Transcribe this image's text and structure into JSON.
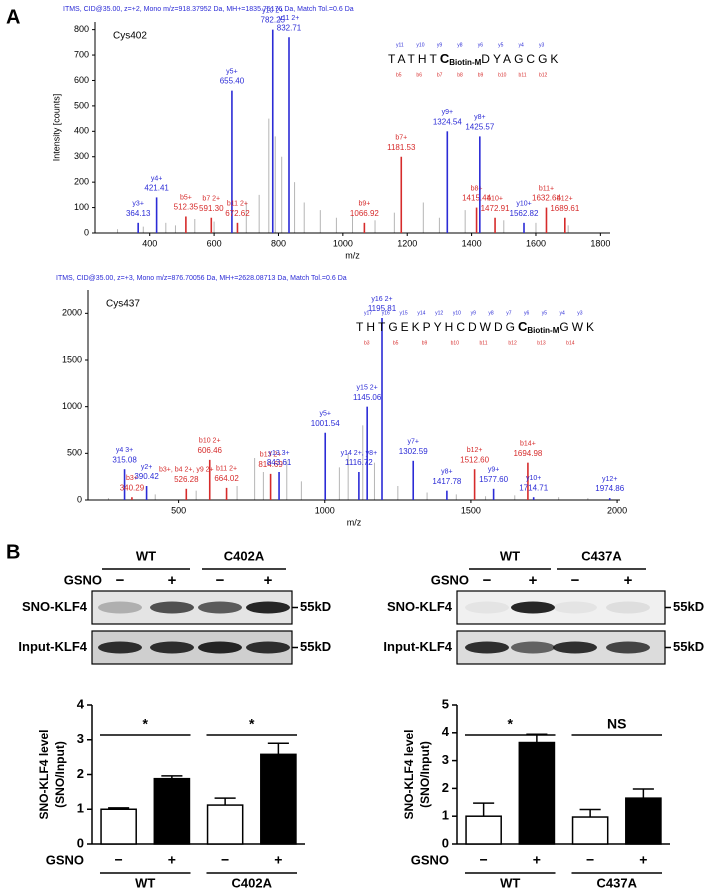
{
  "panel_labels": [
    "A",
    "B"
  ],
  "chart_data": [
    {
      "type": "spectrum",
      "header": "ITMS, CID@35.00, z=+2, Mono m/z=918.37952 Da, MH+=1835.75176 Da, Match Tol.=0.6 Da",
      "label": "Cys402",
      "y_label": "Intensity [counts]",
      "x_label": "m/z",
      "xlim": [
        230,
        1830
      ],
      "ylim": [
        0,
        830
      ],
      "xticks": [
        400,
        600,
        800,
        1000,
        1200,
        1400,
        1600,
        1800
      ],
      "yticks": [
        0,
        100,
        200,
        300,
        400,
        500,
        600,
        700,
        800
      ],
      "seq_before": "TATHT",
      "mod_residue": "C",
      "mod": "Biotin-M",
      "seq_after": "DYAGCGK",
      "fragments_top": [
        "y11",
        "y10",
        "y9",
        "y8",
        "y6",
        "y5",
        "y4",
        "y3"
      ],
      "fragments_bottom": [
        "b5",
        "b6",
        "b7",
        "b8",
        "b9",
        "b10",
        "b11",
        "b12"
      ],
      "peaks": {
        "x": [
          364.13,
          421.41,
          512.35,
          591.3,
          655.4,
          672.62,
          782.25,
          832.71,
          1066.92,
          1181.53,
          1324.54,
          1415.44,
          1425.57,
          1472.91,
          1562.82,
          1632.64,
          1689.61
        ],
        "values": [
          40,
          140,
          65,
          60,
          560,
          40,
          800,
          770,
          40,
          300,
          400,
          100,
          380,
          60,
          40,
          100,
          60
        ],
        "colors": [
          "#2b2bd6",
          "#2b2bd6",
          "#d62b2b",
          "#d62b2b",
          "#2b2bd6",
          "#d62b2b",
          "#2b2bd6",
          "#2b2bd6",
          "#d62b2b",
          "#d62b2b",
          "#2b2bd6",
          "#d62b2b",
          "#2b2bd6",
          "#d62b2b",
          "#2b2bd6",
          "#d62b2b",
          "#d62b2b"
        ],
        "ions": [
          "y3+",
          "y4+",
          "b5+",
          "b7 2+",
          "y5+",
          "b11 2+",
          "y10 2+",
          "y11 2+",
          "b9+",
          "b7+",
          "y9+",
          "b8+",
          "y8+",
          "b10+",
          "y10+",
          "b11+",
          "b12+"
        ],
        "mz_labels": [
          "364.13",
          "421.41",
          "512.35",
          "591.30",
          "655.40",
          "672.62",
          "782.25",
          "832.71",
          "1066.92",
          "1181.53",
          "1324.54",
          "1415.44",
          "1425.57",
          "1472.91",
          "1562.82",
          "1632.64",
          "1689.61"
        ]
      },
      "background": {
        "color": "#b5b5b5",
        "x": [
          300,
          380,
          450,
          480,
          540,
          600,
          700,
          740,
          770,
          790,
          810,
          850,
          880,
          930,
          980,
          1030,
          1100,
          1160,
          1250,
          1300,
          1380,
          1500,
          1600,
          1700
        ],
        "values": [
          15,
          25,
          40,
          30,
          55,
          45,
          120,
          150,
          450,
          380,
          300,
          200,
          120,
          90,
          60,
          70,
          50,
          80,
          120,
          60,
          90,
          50,
          40,
          30
        ]
      }
    },
    {
      "type": "spectrum",
      "header": "ITMS, CID@35.00, z=+3, Mono m/z=876.70056 Da, MH+=2628.08713 Da, Match Tol.=0.6 Da",
      "label": "Cys437",
      "x_label": "m/z",
      "xlim": [
        190,
        2010
      ],
      "ylim": [
        0,
        2250
      ],
      "xticks": [
        500,
        1000,
        1500,
        2000
      ],
      "yticks": [
        0,
        500,
        1000,
        1500,
        2000
      ],
      "seq_before": "THTGEKPYHCDWDG",
      "mod_residue": "C",
      "mod": "Biotin-M",
      "seq_after": "GWK",
      "fragments_top": [
        "y17",
        "y16",
        "y15",
        "y14",
        "y12",
        "y10",
        "y9",
        "y8",
        "y7",
        "y6",
        "y5",
        "y4",
        "y3"
      ],
      "fragments_bottom": [
        "b3",
        "b5",
        "b9",
        "b10",
        "b11",
        "b12",
        "b13",
        "b14"
      ],
      "peaks": {
        "x": [
          315.08,
          340.29,
          390.42,
          526.28,
          606.46,
          664.02,
          814.69,
          843.61,
          1001.54,
          1116.72,
          1145.06,
          1195.81,
          1302.59,
          1417.78,
          1512.6,
          1577.6,
          1694.98,
          1714.71,
          1974.86
        ],
        "values": [
          330,
          30,
          150,
          120,
          430,
          130,
          280,
          300,
          720,
          300,
          1000,
          1950,
          420,
          100,
          330,
          120,
          400,
          30,
          20
        ],
        "colors": [
          "#2b2bd6",
          "#d62b2b",
          "#2b2bd6",
          "#d62b2b",
          "#d62b2b",
          "#d62b2b",
          "#d62b2b",
          "#2b2bd6",
          "#2b2bd6",
          "#2b2bd6",
          "#2b2bd6",
          "#2b2bd6",
          "#2b2bd6",
          "#2b2bd6",
          "#d62b2b",
          "#2b2bd6",
          "#d62b2b",
          "#2b2bd6",
          "#2b2bd6"
        ],
        "ions": [
          "y4 3+",
          "b3+",
          "y2+",
          "b3+, b4 2+, y9 2+",
          "b10 2+",
          "b11 2+",
          "b13 2+",
          "y13 3+",
          "y5+",
          "y14 2+, y8+",
          "y15 2+",
          "y16 2+",
          "y7+",
          "y8+",
          "b12+",
          "y9+",
          "b14+",
          "y10+",
          "y12+"
        ],
        "mz_labels": [
          "315.08",
          "340.29",
          "390.42",
          "526.28",
          "606.46",
          "664.02",
          "814.69",
          "843.61",
          "1001.54",
          "1116.72",
          "1145.06",
          "1195.81",
          "1302.59",
          "1417.78",
          "1512.60",
          "1577.60",
          "1694.98",
          "1714.71",
          "1974.86"
        ]
      },
      "background": {
        "color": "#b5b5b5",
        "x": [
          260,
          420,
          560,
          700,
          760,
          790,
          870,
          920,
          1050,
          1080,
          1130,
          1170,
          1250,
          1350,
          1450,
          1550,
          1650,
          1800,
          1900
        ],
        "values": [
          20,
          60,
          100,
          150,
          450,
          300,
          420,
          200,
          350,
          500,
          800,
          400,
          150,
          80,
          60,
          40,
          50,
          30,
          20
        ]
      }
    },
    {
      "type": "bar",
      "y_label": [
        "SNO-KLF4 level",
        "(SNO/Input)"
      ],
      "treatment": "GSNO",
      "categories": [
        "−",
        "+",
        "−",
        "+"
      ],
      "groups": [
        "WT",
        "C402A"
      ],
      "values": [
        1.0,
        1.88,
        1.12,
        2.58
      ],
      "errors": [
        0.04,
        0.08,
        0.2,
        0.32
      ],
      "colors": [
        "#ffffff",
        "#000000",
        "#ffffff",
        "#000000"
      ],
      "ylim": [
        0,
        4
      ],
      "yticks": [
        0,
        1,
        2,
        3,
        4
      ],
      "significance": [
        "*",
        "*"
      ]
    },
    {
      "type": "bar",
      "y_label": [
        "SNO-KLF4 level",
        "(SNO/Input)"
      ],
      "treatment": "GSNO",
      "categories": [
        "−",
        "+",
        "−",
        "+"
      ],
      "groups": [
        "WT",
        "C437A"
      ],
      "values": [
        1.0,
        3.65,
        0.97,
        1.65
      ],
      "errors": [
        0.47,
        0.3,
        0.27,
        0.33
      ],
      "colors": [
        "#ffffff",
        "#000000",
        "#ffffff",
        "#000000"
      ],
      "ylim": [
        0,
        5
      ],
      "yticks": [
        0,
        1,
        2,
        3,
        4,
        5
      ],
      "significance": [
        "*",
        "NS"
      ]
    }
  ],
  "blots": [
    {
      "groups": [
        "WT",
        "C402A"
      ],
      "treatment": "GSNO",
      "signs": [
        "−",
        "+",
        "−",
        "+"
      ],
      "rows": [
        "SNO-KLF4",
        "Input-KLF4"
      ],
      "size_labels": [
        "55kD",
        "55kD"
      ]
    },
    {
      "groups": [
        "WT",
        "C437A"
      ],
      "treatment": "GSNO",
      "signs": [
        "−",
        "+",
        "−",
        "+"
      ],
      "rows": [
        "SNO-KLF4",
        "Input-KLF4"
      ],
      "size_labels": [
        "55kD",
        "55kD"
      ]
    }
  ]
}
